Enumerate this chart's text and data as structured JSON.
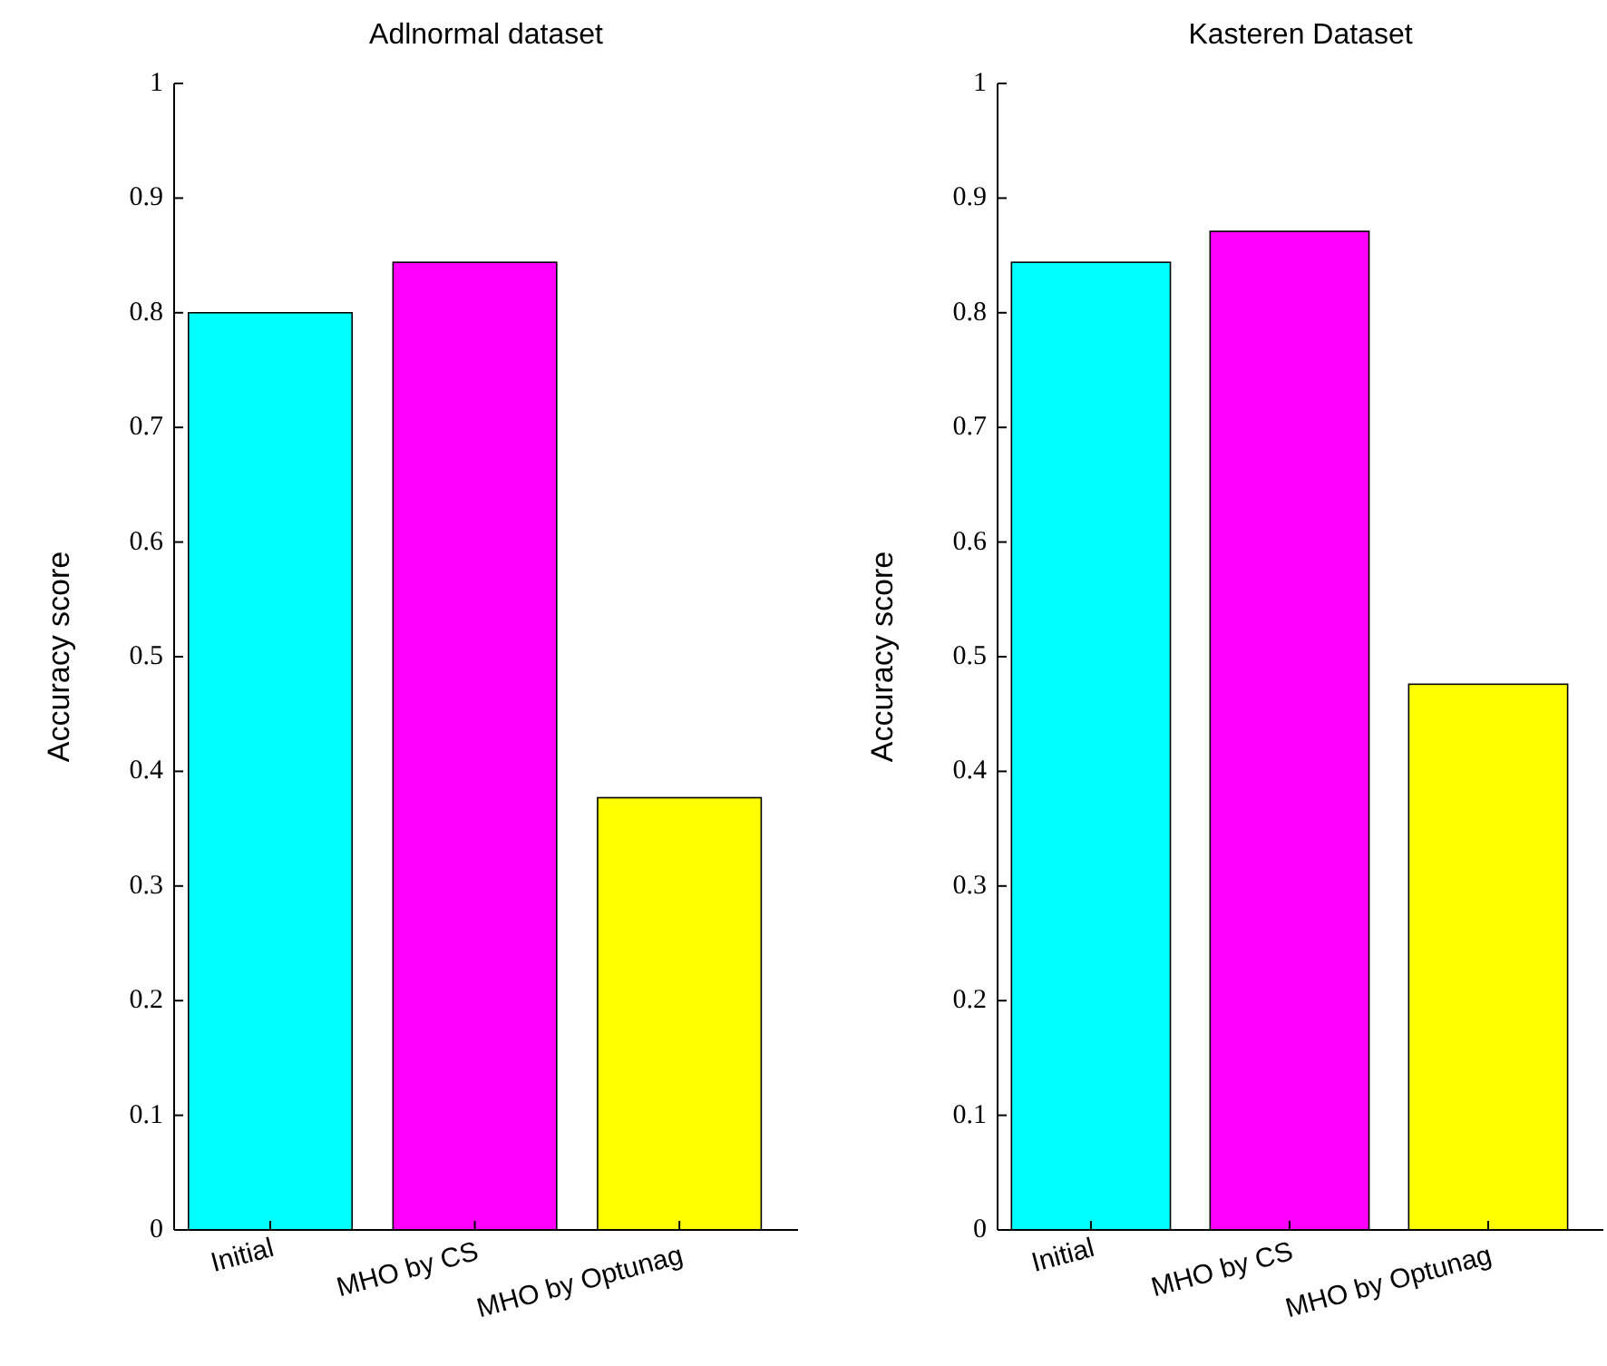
{
  "chart_data": [
    {
      "type": "bar",
      "title": "Adlnormal dataset",
      "ylabel": "Accuracy score",
      "categories": [
        "Initial",
        "MHO by CS",
        "MHO by Optunag"
      ],
      "values": [
        0.8,
        0.844,
        0.377
      ],
      "colors": [
        "#00ffff",
        "#ff00ff",
        "#ffff00"
      ],
      "ylim": [
        0,
        1
      ],
      "yticks": [
        0,
        0.1,
        0.2,
        0.3,
        0.4,
        0.5,
        0.6,
        0.7,
        0.8,
        0.9,
        1
      ],
      "grid": false
    },
    {
      "type": "bar",
      "title": "Kasteren Dataset",
      "ylabel": "Accuracy score",
      "categories": [
        "Initial",
        "MHO by CS",
        "MHO by Optunag"
      ],
      "values": [
        0.844,
        0.871,
        0.476
      ],
      "colors": [
        "#00ffff",
        "#ff00ff",
        "#ffff00"
      ],
      "ylim": [
        0,
        1
      ],
      "yticks": [
        0,
        0.1,
        0.2,
        0.3,
        0.4,
        0.5,
        0.6,
        0.7,
        0.8,
        0.9,
        1
      ],
      "grid": false
    }
  ]
}
